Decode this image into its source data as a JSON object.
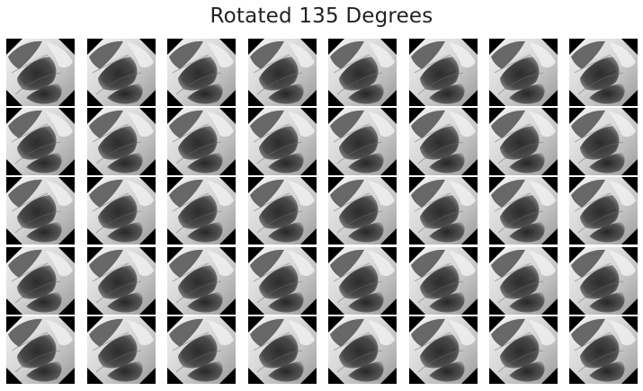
{
  "figure": {
    "title": "Rotated 135 Degrees",
    "rows": 5,
    "columns": 8,
    "tile_background": "#000000",
    "image_tone": "grayscale"
  }
}
